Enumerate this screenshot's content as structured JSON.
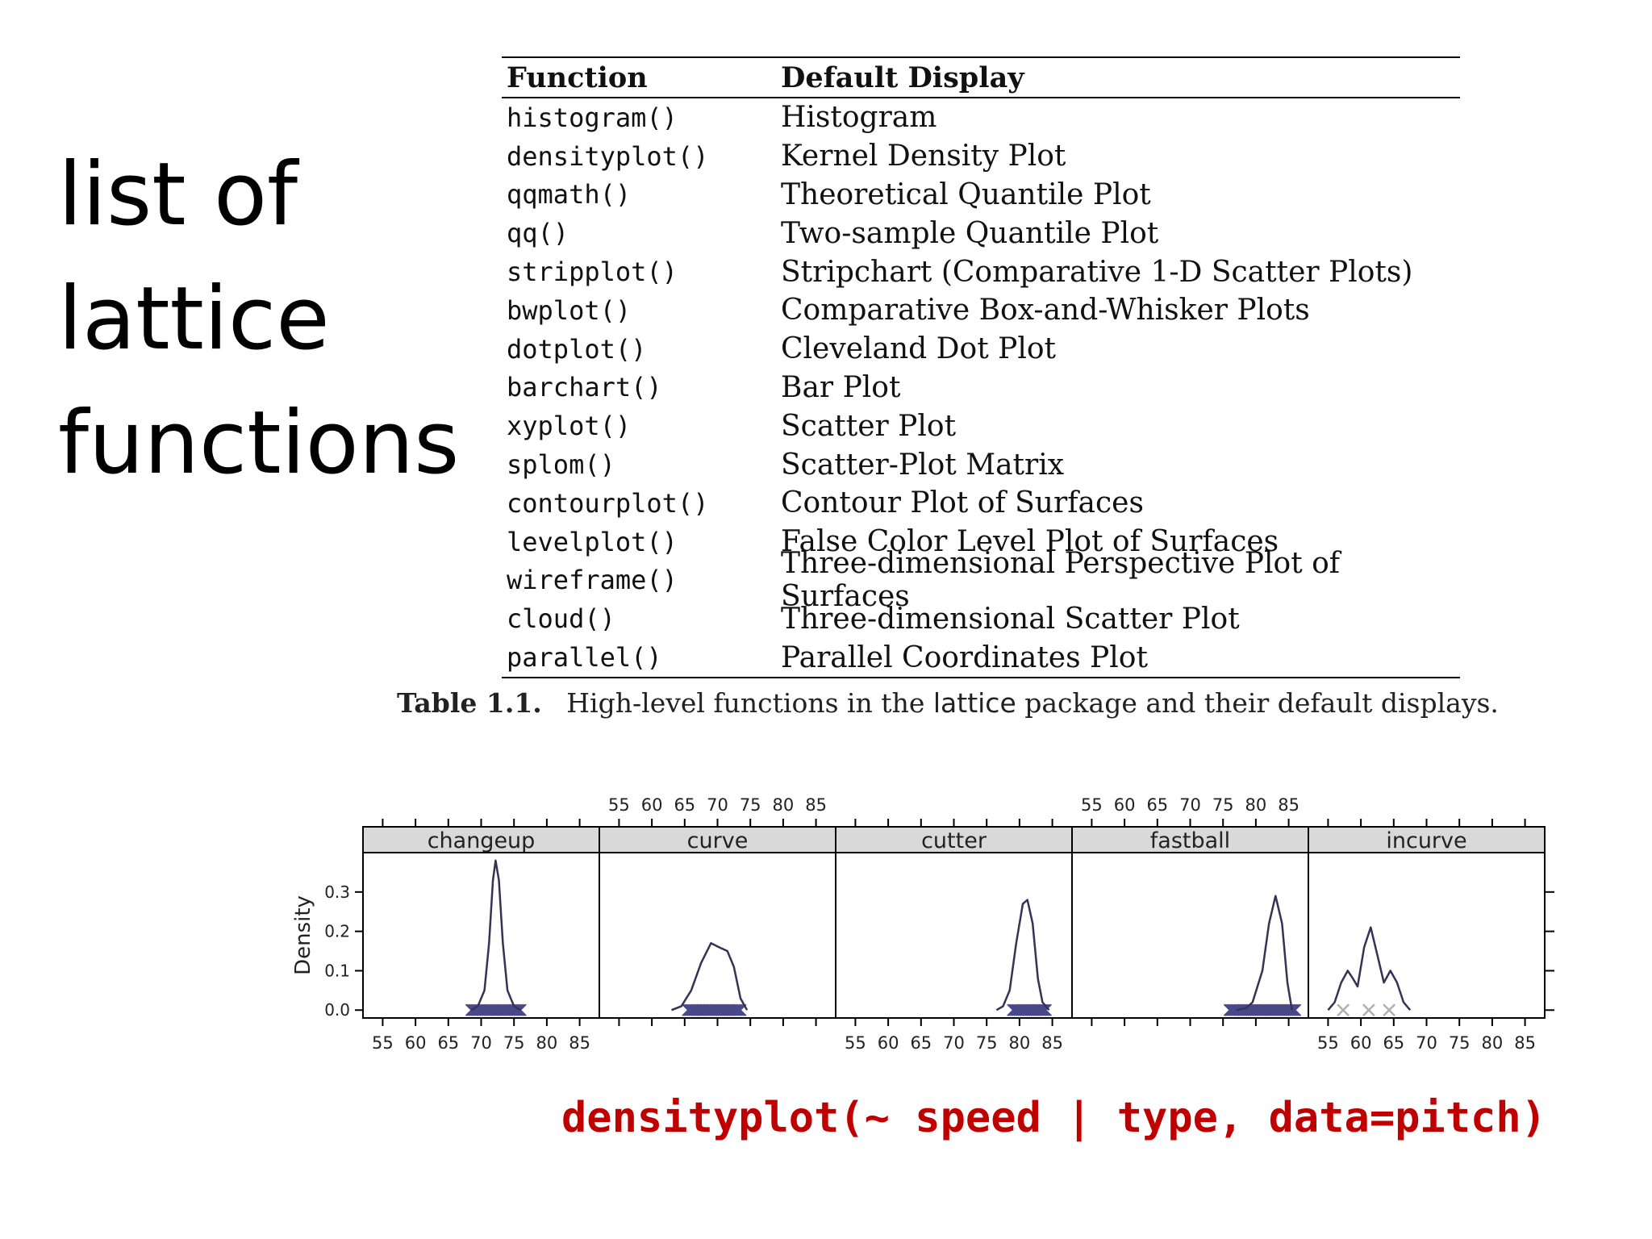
{
  "slide": {
    "title_lines": [
      "list of",
      "lattice",
      "functions"
    ],
    "code": "densityplot(~ speed | type, data=pitch)"
  },
  "table": {
    "headers": [
      "Function",
      "Default Display"
    ],
    "rows": [
      {
        "fn": "histogram()",
        "display": "Histogram"
      },
      {
        "fn": "densityplot()",
        "display": "Kernel Density Plot"
      },
      {
        "fn": "qqmath()",
        "display": "Theoretical Quantile Plot"
      },
      {
        "fn": "qq()",
        "display": "Two-sample Quantile Plot"
      },
      {
        "fn": "stripplot()",
        "display": "Stripchart (Comparative 1-D Scatter Plots)"
      },
      {
        "fn": "bwplot()",
        "display": "Comparative Box-and-Whisker Plots"
      },
      {
        "fn": "dotplot()",
        "display": "Cleveland Dot Plot"
      },
      {
        "fn": "barchart()",
        "display": "Bar Plot"
      },
      {
        "fn": "xyplot()",
        "display": "Scatter Plot"
      },
      {
        "fn": "splom()",
        "display": "Scatter-Plot Matrix"
      },
      {
        "fn": "contourplot()",
        "display": "Contour Plot of Surfaces"
      },
      {
        "fn": "levelplot()",
        "display": "False Color Level Plot of Surfaces"
      },
      {
        "fn": "wireframe()",
        "display": "Three-dimensional Perspective Plot of Surfaces"
      },
      {
        "fn": "cloud()",
        "display": "Three-dimensional Scatter Plot"
      },
      {
        "fn": "parallel()",
        "display": "Parallel Coordinates Plot"
      }
    ],
    "caption_label": "Table 1.1.",
    "caption_before": "High-level functions in the",
    "caption_pkg": "lattice",
    "caption_after": "package and their default displays."
  },
  "chart_data": {
    "type": "line",
    "ylabel": "Density",
    "xlim": [
      52,
      88
    ],
    "ylim": [
      -0.02,
      0.4
    ],
    "x_ticks": [
      55,
      60,
      65,
      70,
      75,
      80,
      85
    ],
    "y_ticks": [
      0.0,
      0.1,
      0.2,
      0.3
    ],
    "y_tick_labels": [
      "0.0",
      "0.1",
      "0.2",
      "0.3"
    ],
    "line_color": "#333355",
    "rug_color": "#1a1a6e",
    "strip_color": "#d9d9d9",
    "panels": [
      {
        "name": "changeup",
        "curve": [
          [
            68.5,
            0.0
          ],
          [
            69.5,
            0.01
          ],
          [
            70.5,
            0.05
          ],
          [
            71.2,
            0.17
          ],
          [
            71.8,
            0.33
          ],
          [
            72.2,
            0.38
          ],
          [
            72.7,
            0.33
          ],
          [
            73.3,
            0.17
          ],
          [
            74,
            0.05
          ],
          [
            75,
            0.01
          ],
          [
            76,
            0.0
          ]
        ],
        "rug_range": [
          68.5,
          76
        ]
      },
      {
        "name": "curve",
        "curve": [
          [
            63,
            0.0
          ],
          [
            64.5,
            0.01
          ],
          [
            66,
            0.05
          ],
          [
            67.5,
            0.12
          ],
          [
            69,
            0.17
          ],
          [
            70.2,
            0.16
          ],
          [
            71.5,
            0.15
          ],
          [
            72.5,
            0.11
          ],
          [
            73.5,
            0.03
          ],
          [
            74.5,
            0.0
          ]
        ],
        "rug_range": [
          65.5,
          73.5
        ]
      },
      {
        "name": "cutter",
        "curve": [
          [
            76.5,
            0.0
          ],
          [
            77.5,
            0.01
          ],
          [
            78.5,
            0.05
          ],
          [
            79.5,
            0.17
          ],
          [
            80.5,
            0.27
          ],
          [
            81.2,
            0.28
          ],
          [
            82,
            0.22
          ],
          [
            82.8,
            0.08
          ],
          [
            83.5,
            0.02
          ],
          [
            84.5,
            0.0
          ]
        ],
        "rug_range": [
          79,
          84
        ]
      },
      {
        "name": "fastball",
        "curve": [
          [
            77,
            0.0
          ],
          [
            78.5,
            0.005
          ],
          [
            79.5,
            0.02
          ],
          [
            81,
            0.1
          ],
          [
            82,
            0.22
          ],
          [
            83,
            0.29
          ],
          [
            84,
            0.22
          ],
          [
            84.8,
            0.07
          ],
          [
            85.5,
            0.0
          ]
        ],
        "rug_range": [
          76,
          86
        ]
      },
      {
        "name": "incurve",
        "curve": [
          [
            55,
            0.0
          ],
          [
            56,
            0.02
          ],
          [
            57,
            0.07
          ],
          [
            58,
            0.1
          ],
          [
            58.8,
            0.08
          ],
          [
            59.5,
            0.06
          ],
          [
            60.5,
            0.16
          ],
          [
            61.5,
            0.21
          ],
          [
            62.5,
            0.14
          ],
          [
            63.5,
            0.07
          ],
          [
            64.5,
            0.1
          ],
          [
            65.5,
            0.07
          ],
          [
            66.5,
            0.02
          ],
          [
            67.5,
            0.0
          ]
        ],
        "rug_points": [
          57.3,
          61.2,
          64.3
        ]
      }
    ]
  }
}
